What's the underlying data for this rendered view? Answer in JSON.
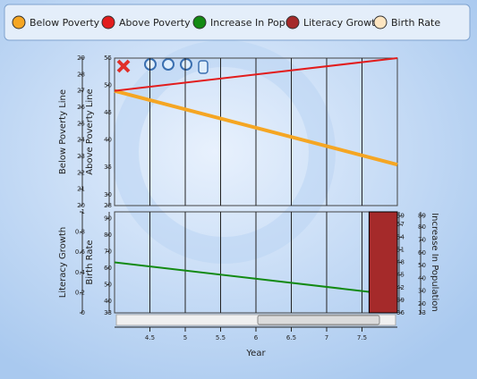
{
  "chart_data": {
    "type": "line",
    "x_label": "Year",
    "xlim": [
      4,
      8
    ],
    "xticks": [
      4.5,
      5,
      5.5,
      6,
      6.5,
      7,
      7.5
    ],
    "grid": true,
    "legend": "top",
    "axes": [
      {
        "label": "Below Poverty Line",
        "ylim": [
          20,
          29
        ],
        "yticks": [
          20,
          21,
          22,
          23,
          24,
          25,
          26,
          27,
          28,
          29
        ]
      },
      {
        "label": "Above Poverty Line",
        "ylim": [
          28,
          55
        ],
        "yticks": [
          28,
          30,
          35,
          40,
          45,
          50,
          55
        ]
      },
      {
        "label": "Literacy Growth",
        "ylim": [
          0,
          1
        ],
        "yticks": [
          0,
          0.2,
          0.4,
          0.6,
          0.8,
          1
        ]
      },
      {
        "label": "Birth Rate",
        "ylim": [
          33,
          94
        ],
        "yticks": [
          33,
          40,
          50,
          60,
          70,
          80,
          90
        ]
      },
      {
        "label": "Increase In Population",
        "ylim": [
          36,
          60
        ],
        "yticks": [
          36,
          39,
          42,
          45,
          48,
          51,
          54,
          57,
          59
        ]
      },
      {
        "ylim": [
          13,
          92
        ],
        "yticks": [
          13,
          20,
          30,
          40,
          50,
          60,
          70,
          80,
          89
        ]
      }
    ],
    "series": [
      {
        "name": "Below Poverty L",
        "color": "#f5a623",
        "type": "line",
        "axis": 0,
        "x": [
          4,
          8
        ],
        "values": [
          27,
          22.5
        ]
      },
      {
        "name": "Above Poverty L",
        "color": "#e21d1d",
        "type": "line",
        "axis": 1,
        "x": [
          4,
          8
        ],
        "values": [
          49,
          55
        ]
      },
      {
        "name": "Increase In Popu",
        "color": "#138a13",
        "type": "line",
        "axis": 4,
        "x": [
          4,
          7.6
        ],
        "values": [
          48,
          41
        ]
      },
      {
        "name": "Literacy Growth",
        "color": "#a52a2a",
        "type": "bar",
        "axis": 2,
        "x": [
          7.8
        ],
        "values": [
          1
        ]
      },
      {
        "name": "Birth Rate",
        "color": "#fde5c0",
        "type": "line",
        "axis": 3,
        "x": [],
        "values": []
      }
    ]
  }
}
